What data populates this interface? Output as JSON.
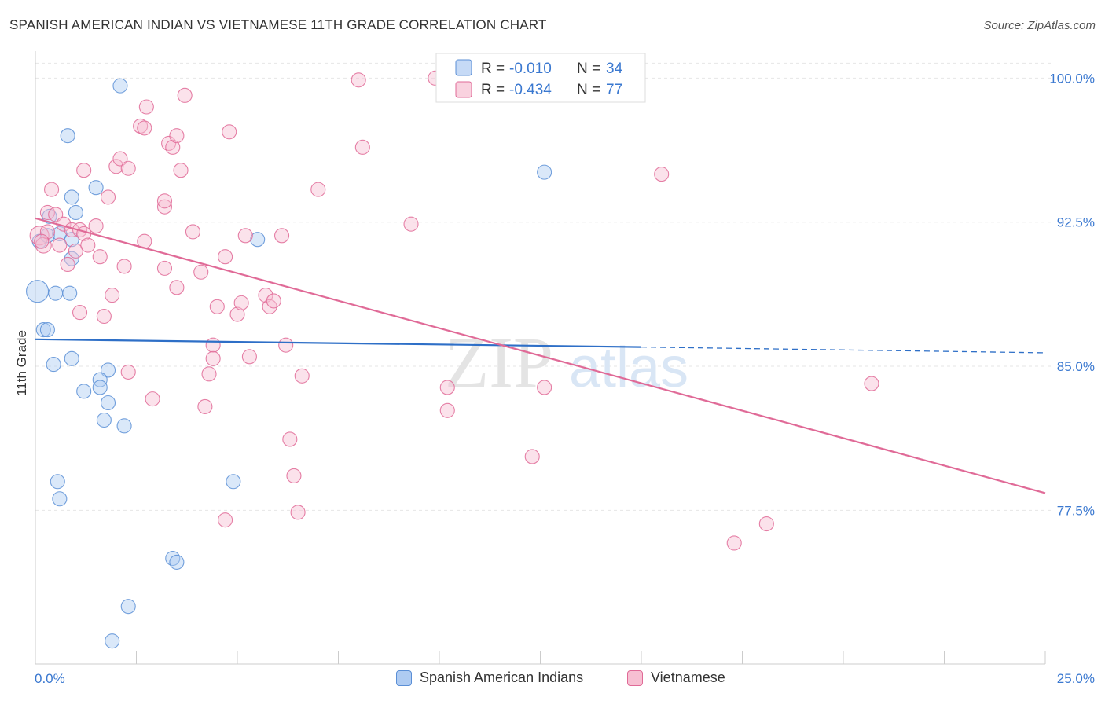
{
  "title": "SPANISH AMERICAN INDIAN VS VIETNAMESE 11TH GRADE CORRELATION CHART",
  "source": "Source: ZipAtlas.com",
  "watermark": {
    "zip": "ZIP",
    "atlas": "atlas"
  },
  "chart_data": {
    "type": "scatter",
    "xlabel": "",
    "ylabel": "11th Grade",
    "xlim": [
      0,
      25
    ],
    "ylim": [
      69.5,
      101.2
    ],
    "x_tick_labels": [
      "0.0%",
      "25.0%"
    ],
    "y_ticks": [
      77.5,
      85.0,
      92.5,
      100.0
    ],
    "y_tick_labels": [
      "77.5%",
      "85.0%",
      "92.5%",
      "100.0%"
    ],
    "grid": true,
    "legend_position": "top-center",
    "legend": [
      {
        "r_label": "R =",
        "r": "-0.010",
        "n_label": "N =",
        "n": "34"
      },
      {
        "r_label": "R =",
        "r": "-0.434",
        "n_label": "N =",
        "n": "77"
      }
    ],
    "series": [
      {
        "name": "Spanish American Indians",
        "color": "#5b8fd6",
        "fill": "#aecbf2",
        "trend": {
          "x0": 0,
          "y0": 86.4,
          "x1": 15,
          "y1": 86.0,
          "dash_to": 25,
          "dash_y": 85.7
        },
        "points": [
          [
            0.05,
            88.9,
            14
          ],
          [
            0.2,
            86.9,
            9
          ],
          [
            0.3,
            86.9,
            9
          ],
          [
            0.1,
            91.5,
            9
          ],
          [
            0.3,
            91.8,
            9
          ],
          [
            0.35,
            92.8,
            9
          ],
          [
            0.6,
            91.9,
            9
          ],
          [
            1.0,
            93.0,
            9
          ],
          [
            0.9,
            93.8,
            9
          ],
          [
            1.5,
            94.3,
            9
          ],
          [
            0.8,
            97.0,
            9
          ],
          [
            2.1,
            99.6,
            9
          ],
          [
            12.6,
            95.1,
            9
          ],
          [
            5.5,
            91.6,
            9
          ],
          [
            0.9,
            91.6,
            9
          ],
          [
            0.9,
            90.6,
            9
          ],
          [
            0.85,
            88.8,
            9
          ],
          [
            0.5,
            88.8,
            9
          ],
          [
            0.9,
            85.4,
            9
          ],
          [
            0.45,
            85.1,
            9
          ],
          [
            1.8,
            84.8,
            9
          ],
          [
            1.6,
            84.3,
            9
          ],
          [
            1.6,
            83.9,
            9
          ],
          [
            1.2,
            83.7,
            9
          ],
          [
            1.8,
            83.1,
            9
          ],
          [
            1.7,
            82.2,
            9
          ],
          [
            2.2,
            81.9,
            9
          ],
          [
            0.55,
            79.0,
            9
          ],
          [
            0.6,
            78.1,
            9
          ],
          [
            4.9,
            79.0,
            9
          ],
          [
            3.4,
            75.0,
            9
          ],
          [
            3.5,
            74.8,
            9
          ],
          [
            2.3,
            72.5,
            9
          ],
          [
            1.9,
            70.7,
            9
          ]
        ]
      },
      {
        "name": "Vietnamese",
        "color": "#e06a97",
        "fill": "#f7bfd2",
        "trend": {
          "x0": 0,
          "y0": 92.7,
          "x1": 25,
          "y1": 78.4
        },
        "points": [
          [
            0.1,
            91.8,
            12
          ],
          [
            0.2,
            91.3,
            10
          ],
          [
            0.3,
            92.0,
            9
          ],
          [
            0.3,
            93.0,
            9
          ],
          [
            0.4,
            94.2,
            9
          ],
          [
            0.5,
            92.9,
            9
          ],
          [
            0.6,
            91.3,
            9
          ],
          [
            0.7,
            92.4,
            9
          ],
          [
            0.8,
            90.3,
            9
          ],
          [
            0.9,
            92.1,
            9
          ],
          [
            1.0,
            91.0,
            9
          ],
          [
            1.1,
            92.1,
            9
          ],
          [
            1.2,
            91.9,
            9
          ],
          [
            1.3,
            91.3,
            9
          ],
          [
            1.5,
            92.3,
            9
          ],
          [
            1.6,
            90.7,
            9
          ],
          [
            1.2,
            95.2,
            9
          ],
          [
            1.8,
            93.8,
            9
          ],
          [
            2.0,
            95.4,
            9
          ],
          [
            2.1,
            95.8,
            9
          ],
          [
            2.3,
            95.3,
            9
          ],
          [
            2.6,
            97.5,
            9
          ],
          [
            2.7,
            97.4,
            9
          ],
          [
            2.75,
            98.5,
            9
          ],
          [
            3.2,
            93.3,
            9
          ],
          [
            3.2,
            93.6,
            9
          ],
          [
            3.3,
            96.6,
            9
          ],
          [
            3.4,
            96.4,
            9
          ],
          [
            3.5,
            97.0,
            9
          ],
          [
            3.6,
            95.2,
            9
          ],
          [
            3.7,
            99.1,
            9
          ],
          [
            2.7,
            91.5,
            9
          ],
          [
            2.2,
            90.2,
            9
          ],
          [
            3.2,
            90.1,
            9
          ],
          [
            3.5,
            89.1,
            9
          ],
          [
            3.9,
            92.0,
            9
          ],
          [
            4.1,
            89.9,
            9
          ],
          [
            4.7,
            90.7,
            9
          ],
          [
            4.8,
            97.2,
            9
          ],
          [
            5.2,
            91.8,
            9
          ],
          [
            6.1,
            91.8,
            9
          ],
          [
            7.0,
            94.2,
            9
          ],
          [
            8.0,
            99.9,
            9
          ],
          [
            9.9,
            100.0,
            9
          ],
          [
            8.1,
            96.4,
            9
          ],
          [
            9.3,
            92.4,
            9
          ],
          [
            15.5,
            95.0,
            9
          ],
          [
            1.9,
            88.7,
            9
          ],
          [
            1.1,
            87.8,
            9
          ],
          [
            1.7,
            87.6,
            9
          ],
          [
            4.5,
            88.1,
            9
          ],
          [
            5.0,
            87.7,
            9
          ],
          [
            5.1,
            88.3,
            9
          ],
          [
            5.7,
            88.7,
            9
          ],
          [
            5.8,
            88.1,
            9
          ],
          [
            5.9,
            88.4,
            9
          ],
          [
            4.4,
            86.1,
            9
          ],
          [
            4.4,
            85.4,
            9
          ],
          [
            5.3,
            85.5,
            9
          ],
          [
            6.2,
            86.1,
            9
          ],
          [
            2.3,
            84.7,
            9
          ],
          [
            4.3,
            84.6,
            9
          ],
          [
            6.6,
            84.5,
            9
          ],
          [
            2.9,
            83.3,
            9
          ],
          [
            4.2,
            82.9,
            9
          ],
          [
            10.2,
            83.9,
            9
          ],
          [
            12.6,
            83.9,
            9
          ],
          [
            10.2,
            82.7,
            9
          ],
          [
            20.7,
            84.1,
            9
          ],
          [
            6.3,
            81.2,
            9
          ],
          [
            12.3,
            80.3,
            9
          ],
          [
            6.4,
            79.3,
            9
          ],
          [
            6.5,
            77.4,
            9
          ],
          [
            4.7,
            77.0,
            9
          ],
          [
            18.1,
            76.8,
            9
          ],
          [
            17.3,
            75.8,
            9
          ],
          [
            0.15,
            91.5,
            9
          ]
        ]
      }
    ]
  }
}
